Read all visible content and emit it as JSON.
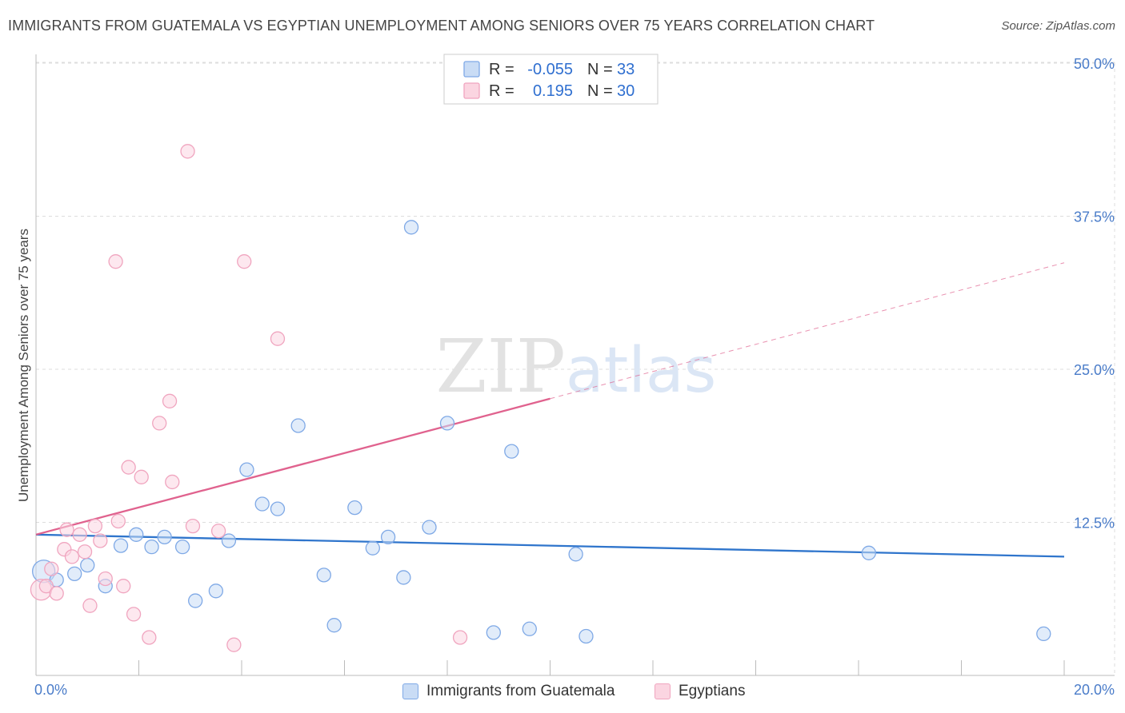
{
  "chart_data": {
    "type": "scatter",
    "title": "IMMIGRANTS FROM GUATEMALA VS EGYPTIAN UNEMPLOYMENT AMONG SENIORS OVER 75 YEARS CORRELATION CHART",
    "source": "Source: ZipAtlas.com",
    "xlabel": "",
    "ylabel": "Unemployment Among Seniors over 75 years",
    "xlim": [
      0,
      20
    ],
    "ylim": [
      0,
      50
    ],
    "x_tick_labels": [
      "0.0%",
      "20.0%"
    ],
    "y_ticks": [
      12.5,
      25.0,
      37.5,
      50.0
    ],
    "y_tick_labels": [
      "12.5%",
      "25.0%",
      "37.5%",
      "50.0%"
    ],
    "watermark": "ZIPatlas",
    "legend": {
      "rows": [
        {
          "r_label": "R =",
          "r_value": "-0.055",
          "n_label": "N =",
          "n_value": "33"
        },
        {
          "r_label": "R =",
          "r_value": "0.195",
          "n_label": "N =",
          "n_value": "30"
        }
      ]
    },
    "series": [
      {
        "name": "Immigrants from Guatemala",
        "color": "#7fa9e6",
        "fill": "#c9dcf5",
        "line_color": "#2f75cc",
        "trend": {
          "x": [
            0,
            20
          ],
          "y": [
            11.5,
            9.7
          ]
        },
        "points": [
          {
            "x": 0.15,
            "y": 8.5,
            "s": 14
          },
          {
            "x": 0.4,
            "y": 7.8
          },
          {
            "x": 0.75,
            "y": 8.3
          },
          {
            "x": 1.0,
            "y": 9.0
          },
          {
            "x": 1.35,
            "y": 7.3
          },
          {
            "x": 1.65,
            "y": 10.6
          },
          {
            "x": 1.95,
            "y": 11.5
          },
          {
            "x": 2.25,
            "y": 10.5
          },
          {
            "x": 2.5,
            "y": 11.3
          },
          {
            "x": 2.85,
            "y": 10.5
          },
          {
            "x": 3.1,
            "y": 6.1
          },
          {
            "x": 3.5,
            "y": 6.9
          },
          {
            "x": 3.75,
            "y": 11.0
          },
          {
            "x": 4.1,
            "y": 16.8
          },
          {
            "x": 4.4,
            "y": 14.0
          },
          {
            "x": 4.7,
            "y": 13.6
          },
          {
            "x": 5.1,
            "y": 20.4
          },
          {
            "x": 5.6,
            "y": 8.2
          },
          {
            "x": 5.8,
            "y": 4.1
          },
          {
            "x": 6.2,
            "y": 13.7
          },
          {
            "x": 6.55,
            "y": 10.4
          },
          {
            "x": 6.85,
            "y": 11.3
          },
          {
            "x": 7.15,
            "y": 8.0
          },
          {
            "x": 7.3,
            "y": 36.6
          },
          {
            "x": 7.65,
            "y": 12.1
          },
          {
            "x": 8.0,
            "y": 20.6
          },
          {
            "x": 8.9,
            "y": 3.5
          },
          {
            "x": 9.25,
            "y": 18.3
          },
          {
            "x": 9.6,
            "y": 3.8
          },
          {
            "x": 10.5,
            "y": 9.9
          },
          {
            "x": 10.7,
            "y": 3.2
          },
          {
            "x": 16.2,
            "y": 10.0
          },
          {
            "x": 19.6,
            "y": 3.4
          }
        ]
      },
      {
        "name": "Egyptians",
        "color": "#f0a5bf",
        "fill": "#fbd5e1",
        "line_color": "#e0628e",
        "trend": {
          "x": [
            0,
            10
          ],
          "y": [
            11.5,
            22.6
          ]
        },
        "trend_dashed": {
          "x": [
            10,
            20
          ],
          "y": [
            22.6,
            33.7
          ]
        },
        "points": [
          {
            "x": 0.1,
            "y": 7.0,
            "s": 13
          },
          {
            "x": 0.2,
            "y": 7.3
          },
          {
            "x": 0.3,
            "y": 8.7
          },
          {
            "x": 0.4,
            "y": 6.7
          },
          {
            "x": 0.55,
            "y": 10.3
          },
          {
            "x": 0.6,
            "y": 11.9
          },
          {
            "x": 0.7,
            "y": 9.7
          },
          {
            "x": 0.85,
            "y": 11.5
          },
          {
            "x": 0.95,
            "y": 10.1
          },
          {
            "x": 1.05,
            "y": 5.7
          },
          {
            "x": 1.15,
            "y": 12.2
          },
          {
            "x": 1.25,
            "y": 11.0
          },
          {
            "x": 1.35,
            "y": 7.9
          },
          {
            "x": 1.55,
            "y": 33.8
          },
          {
            "x": 1.6,
            "y": 12.6
          },
          {
            "x": 1.7,
            "y": 7.3
          },
          {
            "x": 1.8,
            "y": 17.0
          },
          {
            "x": 1.9,
            "y": 5.0
          },
          {
            "x": 2.05,
            "y": 16.2
          },
          {
            "x": 2.2,
            "y": 3.1
          },
          {
            "x": 2.4,
            "y": 20.6
          },
          {
            "x": 2.6,
            "y": 22.4
          },
          {
            "x": 2.65,
            "y": 15.8
          },
          {
            "x": 2.95,
            "y": 42.8
          },
          {
            "x": 3.05,
            "y": 12.2
          },
          {
            "x": 3.55,
            "y": 11.8
          },
          {
            "x": 3.85,
            "y": 2.5
          },
          {
            "x": 4.05,
            "y": 33.8
          },
          {
            "x": 4.7,
            "y": 27.5
          },
          {
            "x": 8.25,
            "y": 3.1
          }
        ]
      }
    ]
  }
}
